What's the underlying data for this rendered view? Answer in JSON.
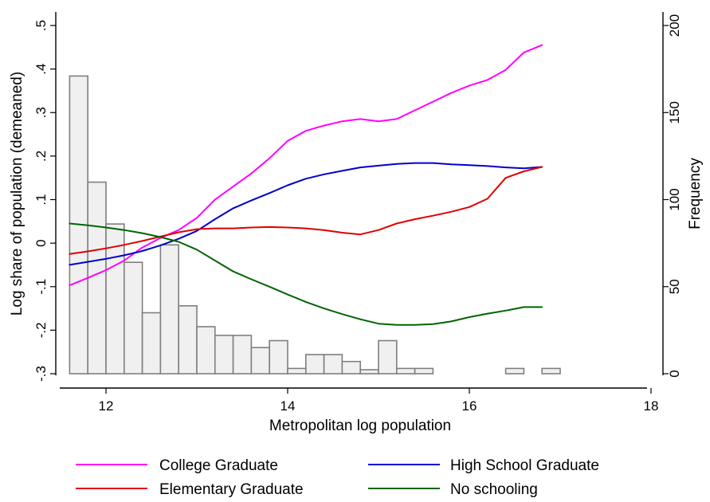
{
  "chart_data": {
    "type": "line",
    "title": "",
    "xlabel": "Metropolitan log population",
    "ylabel": "Log share of population (demeaned)",
    "y2label": "Frequency",
    "xlim": [
      11.5,
      18
    ],
    "ylim": [
      -0.3,
      0.5
    ],
    "y2lim": [
      0,
      200
    ],
    "x_ticks": [
      12,
      14,
      16,
      18
    ],
    "x_tick_labels": [
      "12",
      "14",
      "16",
      "18"
    ],
    "y_ticks": [
      -0.3,
      -0.2,
      -0.1,
      0,
      0.1,
      0.2,
      0.3,
      0.4,
      0.5
    ],
    "y_tick_labels": [
      "-.3",
      "-.2",
      "-.1",
      "0",
      ".1",
      ".2",
      ".3",
      ".4",
      ".5"
    ],
    "y2_ticks": [
      0,
      50,
      100,
      150,
      200
    ],
    "y2_tick_labels": [
      "0",
      "50",
      "100",
      "150",
      "200"
    ],
    "grid": false,
    "legend_position": "bottom",
    "histogram": {
      "axis": "y2",
      "bin_width": 0.2,
      "bins": [
        {
          "x0": 11.6,
          "count": 171
        },
        {
          "x0": 11.8,
          "count": 110
        },
        {
          "x0": 12.0,
          "count": 86
        },
        {
          "x0": 12.2,
          "count": 64
        },
        {
          "x0": 12.4,
          "count": 35
        },
        {
          "x0": 12.6,
          "count": 74
        },
        {
          "x0": 12.8,
          "count": 39
        },
        {
          "x0": 13.0,
          "count": 27
        },
        {
          "x0": 13.2,
          "count": 22
        },
        {
          "x0": 13.4,
          "count": 22
        },
        {
          "x0": 13.6,
          "count": 15
        },
        {
          "x0": 13.8,
          "count": 19
        },
        {
          "x0": 14.0,
          "count": 3
        },
        {
          "x0": 14.2,
          "count": 11
        },
        {
          "x0": 14.4,
          "count": 11
        },
        {
          "x0": 14.6,
          "count": 7
        },
        {
          "x0": 14.8,
          "count": 0
        },
        {
          "x0": 15.0,
          "count": 19
        },
        {
          "x0": 15.2,
          "count": 3
        },
        {
          "x0": 15.4,
          "count": 3
        },
        {
          "x0": 16.4,
          "count": 3
        },
        {
          "x0": 16.8,
          "count": 3
        }
      ]
    },
    "series": [
      {
        "name": "College Graduate",
        "color": "#ff00ff",
        "x": [
          11.6,
          11.8,
          12.0,
          12.2,
          12.4,
          12.6,
          12.8,
          13.0,
          13.2,
          13.4,
          13.6,
          13.8,
          14.0,
          14.2,
          14.4,
          14.6,
          14.8,
          15.0,
          15.2,
          15.4,
          15.6,
          15.8,
          16.0,
          16.2,
          16.4,
          16.6,
          16.8
        ],
        "y": [
          -0.097,
          -0.08,
          -0.062,
          -0.04,
          -0.01,
          0.012,
          0.03,
          0.058,
          0.1,
          0.13,
          0.16,
          0.195,
          0.235,
          0.258,
          0.27,
          0.28,
          0.285,
          0.28,
          0.285,
          0.305,
          0.325,
          0.345,
          0.362,
          0.375,
          0.398,
          0.438,
          0.455
        ]
      },
      {
        "name": "High School Graduate",
        "color": "#0000cc",
        "x": [
          11.6,
          11.8,
          12.0,
          12.2,
          12.4,
          12.6,
          12.8,
          13.0,
          13.2,
          13.4,
          13.6,
          13.8,
          14.0,
          14.2,
          14.4,
          14.6,
          14.8,
          15.0,
          15.2,
          15.4,
          15.6,
          15.8,
          16.0,
          16.2,
          16.4,
          16.6,
          16.8
        ],
        "y": [
          -0.05,
          -0.043,
          -0.036,
          -0.028,
          -0.018,
          -0.005,
          0.01,
          0.028,
          0.055,
          0.08,
          0.098,
          0.115,
          0.133,
          0.148,
          0.158,
          0.166,
          0.174,
          0.178,
          0.182,
          0.184,
          0.184,
          0.181,
          0.179,
          0.177,
          0.174,
          0.172,
          0.175
        ]
      },
      {
        "name": "Elementary Graduate",
        "color": "#e00000",
        "x": [
          11.6,
          11.8,
          12.0,
          12.2,
          12.4,
          12.6,
          12.8,
          13.0,
          13.2,
          13.4,
          13.6,
          13.8,
          14.0,
          14.2,
          14.4,
          14.6,
          14.8,
          15.0,
          15.2,
          15.4,
          15.6,
          15.8,
          16.0,
          16.2,
          16.4,
          16.6,
          16.8
        ],
        "y": [
          -0.025,
          -0.019,
          -0.012,
          -0.004,
          0.005,
          0.015,
          0.025,
          0.032,
          0.034,
          0.034,
          0.036,
          0.037,
          0.036,
          0.034,
          0.03,
          0.024,
          0.02,
          0.03,
          0.045,
          0.055,
          0.063,
          0.072,
          0.083,
          0.102,
          0.15,
          0.165,
          0.175
        ]
      },
      {
        "name": "No schooling",
        "color": "#006400",
        "x": [
          11.6,
          11.8,
          12.0,
          12.2,
          12.4,
          12.6,
          12.8,
          13.0,
          13.2,
          13.4,
          13.6,
          13.8,
          14.0,
          14.2,
          14.4,
          14.6,
          14.8,
          15.0,
          15.2,
          15.4,
          15.6,
          15.8,
          16.0,
          16.2,
          16.4,
          16.6,
          16.8
        ],
        "y": [
          0.045,
          0.041,
          0.036,
          0.03,
          0.023,
          0.014,
          0.003,
          -0.015,
          -0.04,
          -0.065,
          -0.083,
          -0.1,
          -0.118,
          -0.135,
          -0.15,
          -0.163,
          -0.175,
          -0.185,
          -0.188,
          -0.188,
          -0.186,
          -0.18,
          -0.17,
          -0.162,
          -0.155,
          -0.147,
          -0.147
        ]
      }
    ]
  }
}
